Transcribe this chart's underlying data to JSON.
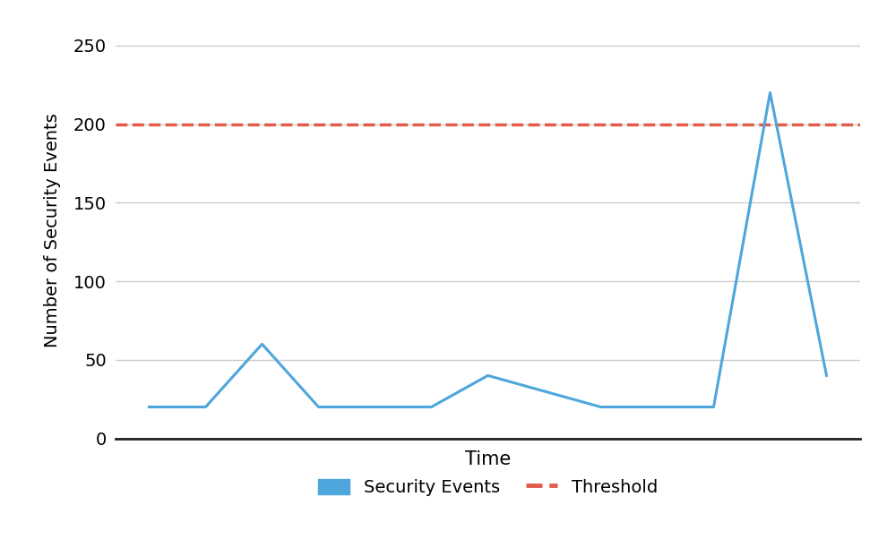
{
  "x_values": [
    0,
    1,
    2,
    3,
    4,
    5,
    6,
    7,
    8,
    9,
    10,
    11,
    12
  ],
  "y_values": [
    20,
    20,
    60,
    20,
    20,
    20,
    40,
    30,
    20,
    20,
    20,
    220,
    40
  ],
  "threshold": 200,
  "line_color": "#4EA6DC",
  "threshold_color": "#E05C4B",
  "line_width": 2.2,
  "threshold_linewidth": 2.5,
  "title": "",
  "xlabel": "Time",
  "ylabel": "Number of Security Events",
  "ylim": [
    0,
    265
  ],
  "yticks": [
    0,
    50,
    100,
    150,
    200,
    250
  ],
  "legend_labels": [
    "Security Events",
    "Threshold"
  ],
  "background_color": "#ffffff",
  "grid_color": "#cccccc",
  "xlabel_fontsize": 15,
  "ylabel_fontsize": 14,
  "tick_fontsize": 14,
  "legend_fontsize": 14
}
